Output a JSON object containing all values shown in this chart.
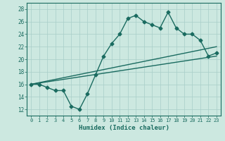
{
  "title": "",
  "xlabel": "Humidex (Indice chaleur)",
  "xlim": [
    -0.5,
    23.5
  ],
  "ylim": [
    11,
    29
  ],
  "yticks": [
    12,
    14,
    16,
    18,
    20,
    22,
    24,
    26,
    28
  ],
  "xticks": [
    0,
    1,
    2,
    3,
    4,
    5,
    6,
    7,
    8,
    9,
    10,
    11,
    12,
    13,
    14,
    15,
    16,
    17,
    18,
    19,
    20,
    21,
    22,
    23
  ],
  "bg_color": "#cce8e0",
  "line_color": "#1a6b60",
  "grid_color": "#a8cec8",
  "line1_x": [
    0,
    1,
    2,
    3,
    4,
    5,
    6,
    7,
    8,
    9,
    10,
    11,
    12,
    13,
    14,
    15,
    16,
    17,
    18,
    19,
    20,
    21,
    22,
    23
  ],
  "line1_y": [
    16,
    16,
    15.5,
    15,
    15,
    12.5,
    12,
    14.5,
    17.5,
    20.5,
    22.5,
    24,
    26.5,
    27,
    26,
    25.5,
    25,
    27.5,
    25,
    24,
    24,
    23,
    20.5,
    21
  ],
  "line2_x": [
    0,
    23
  ],
  "line2_y": [
    16,
    22
  ],
  "line3_x": [
    0,
    23
  ],
  "line3_y": [
    16,
    20.5
  ],
  "marker": "D",
  "markersize": 2.5,
  "linewidth": 1.0
}
